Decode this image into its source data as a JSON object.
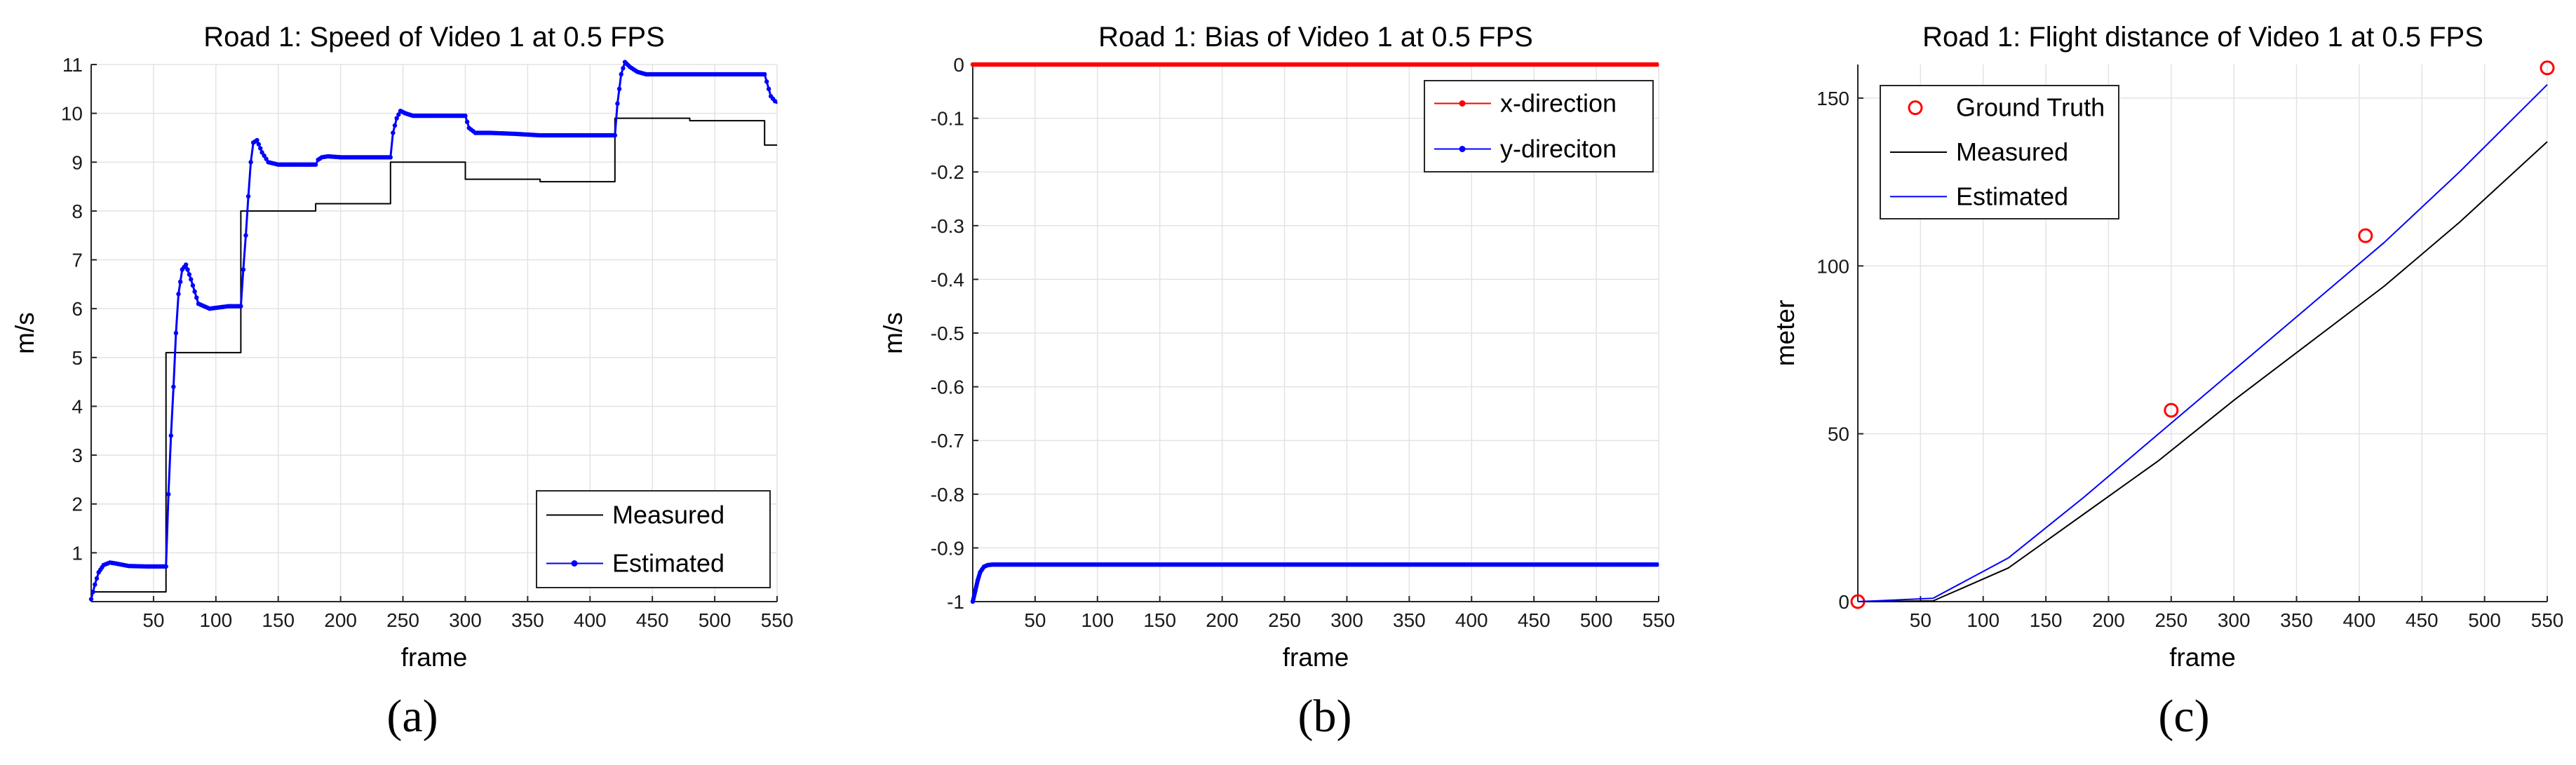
{
  "chart_data": [
    {
      "type": "line",
      "title": "Road 1: Speed of Video 1 at 0.5 FPS",
      "xlabel": "frame",
      "ylabel": "m/s",
      "xlim": [
        0,
        550
      ],
      "ylim": [
        0,
        11
      ],
      "xticks": [
        50,
        100,
        150,
        200,
        250,
        300,
        350,
        400,
        450,
        500,
        550
      ],
      "yticks": [
        1,
        2,
        3,
        4,
        5,
        6,
        7,
        8,
        9,
        10,
        11
      ],
      "grid": true,
      "legend_position": "bottom-right",
      "caption": "(a)",
      "series": [
        {
          "name": "Measured",
          "color": "#000000",
          "style": "line",
          "x": [
            0,
            60,
            60,
            120,
            120,
            180,
            180,
            240,
            240,
            300,
            300,
            360,
            360,
            420,
            420,
            480,
            480,
            540,
            540,
            550
          ],
          "y": [
            0.2,
            0.2,
            5.1,
            5.1,
            8.0,
            8.0,
            8.15,
            8.15,
            9.0,
            9.0,
            8.65,
            8.65,
            8.6,
            8.6,
            9.9,
            9.9,
            9.85,
            9.85,
            9.35,
            9.35
          ]
        },
        {
          "name": "Estimated",
          "color": "#0000ff",
          "style": "line-dots",
          "x": [
            0,
            3,
            6,
            10,
            15,
            20,
            30,
            45,
            60,
            62,
            64,
            66,
            68,
            70,
            73,
            76,
            80,
            86,
            95,
            110,
            120,
            122,
            124,
            126,
            128,
            130,
            133,
            137,
            142,
            150,
            165,
            180,
            182,
            185,
            190,
            200,
            220,
            240,
            242,
            245,
            248,
            252,
            258,
            270,
            290,
            300,
            303,
            308,
            320,
            340,
            360,
            380,
            420,
            422,
            425,
            428,
            432,
            438,
            445,
            460,
            480,
            500,
            520,
            540,
            545,
            550
          ],
          "y": [
            0.05,
            0.35,
            0.6,
            0.75,
            0.8,
            0.78,
            0.73,
            0.72,
            0.72,
            2.2,
            3.4,
            4.4,
            5.5,
            6.3,
            6.8,
            6.9,
            6.6,
            6.1,
            6.0,
            6.05,
            6.05,
            6.8,
            7.5,
            8.3,
            9.0,
            9.4,
            9.45,
            9.2,
            9.0,
            8.95,
            8.95,
            8.95,
            9.05,
            9.1,
            9.12,
            9.1,
            9.1,
            9.1,
            9.6,
            9.9,
            10.05,
            10.0,
            9.95,
            9.95,
            9.95,
            9.95,
            9.7,
            9.6,
            9.6,
            9.58,
            9.55,
            9.55,
            9.55,
            10.2,
            10.8,
            11.05,
            10.95,
            10.85,
            10.8,
            10.8,
            10.8,
            10.8,
            10.8,
            10.8,
            10.35,
            10.2
          ]
        }
      ]
    },
    {
      "type": "line",
      "title": "Road 1: Bias of Video 1 at 0.5 FPS",
      "xlabel": "frame",
      "ylabel": "m/s",
      "xlim": [
        0,
        550
      ],
      "ylim": [
        -1,
        0
      ],
      "xticks": [
        50,
        100,
        150,
        200,
        250,
        300,
        350,
        400,
        450,
        500,
        550
      ],
      "yticks": [
        0,
        -0.1,
        -0.2,
        -0.3,
        -0.4,
        -0.5,
        -0.6,
        -0.7,
        -0.8,
        -0.9,
        -1
      ],
      "grid": true,
      "legend_position": "top-right",
      "caption": "(b)",
      "series": [
        {
          "name": "x-direction",
          "color": "#ff0000",
          "style": "line-dots",
          "x": [
            0,
            550
          ],
          "y": [
            0,
            0
          ]
        },
        {
          "name": "y-direciton",
          "color": "#0000ff",
          "style": "line-dots",
          "x": [
            0,
            2,
            4,
            6,
            9,
            12,
            16,
            20,
            30,
            550
          ],
          "y": [
            -1.0,
            -0.98,
            -0.96,
            -0.945,
            -0.935,
            -0.932,
            -0.931,
            -0.931,
            -0.931,
            -0.931
          ]
        }
      ]
    },
    {
      "type": "line",
      "title": "Road 1: Flight distance of Video 1 at 0.5 FPS",
      "xlabel": "frame",
      "ylabel": "meter",
      "xlim": [
        0,
        550
      ],
      "ylim": [
        0,
        160
      ],
      "xticks": [
        50,
        100,
        150,
        200,
        250,
        300,
        350,
        400,
        450,
        500,
        550
      ],
      "yticks": [
        0,
        50,
        100,
        150
      ],
      "grid": true,
      "legend_position": "top-left",
      "caption": "(c)",
      "series": [
        {
          "name": "Ground Truth",
          "color": "#ff0000",
          "style": "markers-circle",
          "x": [
            0,
            250,
            405,
            550
          ],
          "y": [
            0,
            57,
            109,
            159
          ]
        },
        {
          "name": "Measured",
          "color": "#000000",
          "style": "line",
          "x": [
            0,
            60,
            120,
            180,
            240,
            300,
            360,
            420,
            480,
            550
          ],
          "y": [
            0,
            0.2,
            10,
            26,
            42,
            60,
            77,
            94,
            113,
            137
          ]
        },
        {
          "name": "Estimated",
          "color": "#0000ff",
          "style": "line",
          "x": [
            0,
            60,
            120,
            180,
            240,
            300,
            360,
            420,
            480,
            550
          ],
          "y": [
            0,
            1,
            13,
            31,
            50,
            69,
            88,
            107,
            128,
            154
          ]
        }
      ]
    }
  ]
}
